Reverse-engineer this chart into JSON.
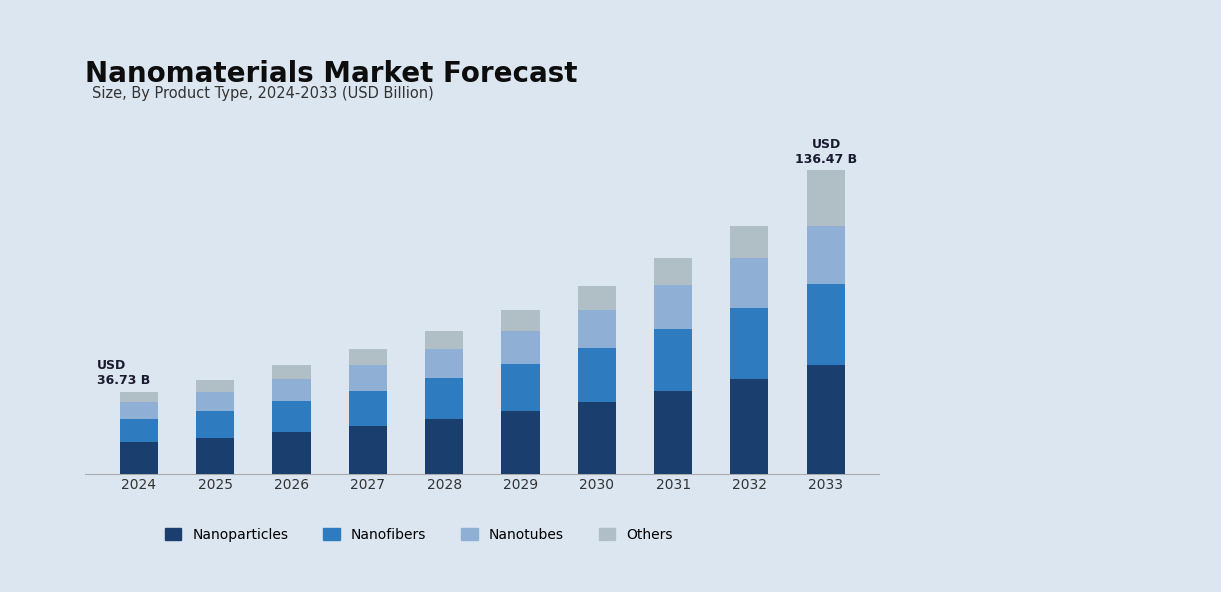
{
  "title": "Nanomaterials Market Forecast",
  "subtitle": "Size, By Product Type, 2024-2033 (USD Billion)",
  "years": [
    2024,
    2025,
    2026,
    2027,
    2028,
    2029,
    2030,
    2031,
    2032,
    2033
  ],
  "categories": [
    "Nanoparticles",
    "Nanofibers",
    "Nanotubes",
    "Others"
  ],
  "colors": [
    "#1a3f6f",
    "#2e7bbf",
    "#8fafd4",
    "#b0bec5"
  ],
  "data": {
    "Nanoparticles": [
      14.0,
      16.2,
      18.6,
      21.3,
      24.5,
      28.1,
      32.3,
      37.0,
      42.5,
      48.8
    ],
    "Nanofibers": [
      10.5,
      12.1,
      13.9,
      16.0,
      18.4,
      21.1,
      24.2,
      27.8,
      31.9,
      36.6
    ],
    "Nanotubes": [
      7.5,
      8.6,
      9.9,
      11.4,
      13.1,
      15.0,
      17.2,
      19.8,
      22.7,
      26.1
    ],
    "Others": [
      4.73,
      5.4,
      6.2,
      7.1,
      8.2,
      9.4,
      10.8,
      12.4,
      14.2,
      24.97
    ]
  },
  "totals": {
    "2024": 36.73,
    "2033": 136.47
  },
  "annotation_2024": "USD\n36.73 B",
  "annotation_2033": "USD\n136.47 B",
  "background_color": "#dce6f1",
  "bar_width": 0.5,
  "ylim": [
    0,
    165
  ],
  "legend_items": [
    "Nanoparticles",
    "Nanofibers",
    "Nanotubes",
    "Others"
  ]
}
